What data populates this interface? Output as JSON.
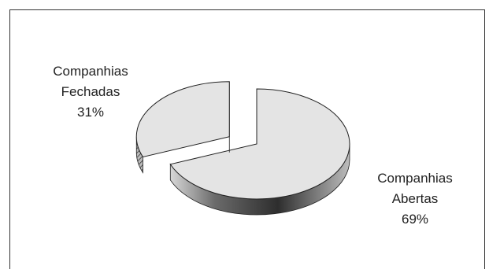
{
  "chart_data": {
    "type": "pie",
    "title": "",
    "style": "3d-exploded",
    "slices": [
      {
        "label_line1": "Companhias",
        "label_line2": "Abertas",
        "value": 69,
        "value_text": "69%",
        "color": "#e4e4e4",
        "exploded": false
      },
      {
        "label_line1": "Companhias",
        "label_line2": "Fechadas",
        "value": 31,
        "value_text": "31%",
        "color": "#e4e4e4",
        "exploded": true
      }
    ],
    "legend": "none"
  },
  "colors": {
    "slice_fill": "#e4e4e4",
    "slice_side_dark": "#3a3a3a",
    "outline": "#222222"
  }
}
